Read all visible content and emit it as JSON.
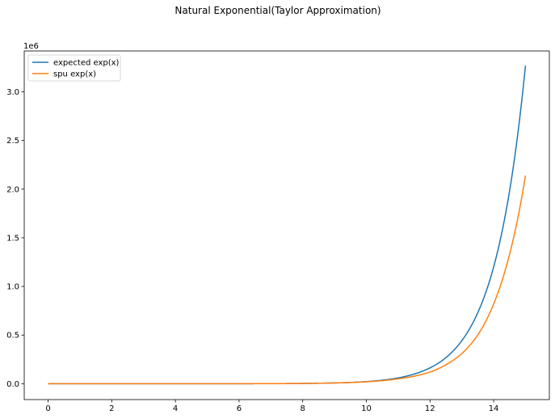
{
  "chart_data": {
    "type": "line",
    "title": "Natural Exponential(Taylor Approximation)",
    "xlabel": "",
    "ylabel": "",
    "y_offset_label": "1e6",
    "xlim": [
      -0.75,
      15.75
    ],
    "ylim": [
      -0.163,
      3.42
    ],
    "x_ticks": [
      0,
      2,
      4,
      6,
      8,
      10,
      12,
      14
    ],
    "x_tick_labels": [
      "0",
      "2",
      "4",
      "6",
      "8",
      "10",
      "12",
      "14"
    ],
    "y_ticks": [
      0,
      0.5,
      1.0,
      1.5,
      2.0,
      2.5,
      3.0
    ],
    "y_tick_labels": [
      "0.0",
      "0.5",
      "1.0",
      "1.5",
      "2.0",
      "2.5",
      "3.0"
    ],
    "grid": false,
    "legend_position": "top-left",
    "x": [
      0,
      1,
      2,
      3,
      4,
      5,
      6,
      7,
      8,
      9,
      10,
      11,
      12,
      12.5,
      13,
      13.5,
      14,
      14.5,
      15
    ],
    "series": [
      {
        "name": "expected exp(x)",
        "color": "#1f77b4",
        "values": [
          1e-06,
          2.7e-06,
          7.4e-06,
          2e-05,
          5.5e-05,
          0.000148,
          0.000403,
          0.0011,
          0.00298,
          0.0081,
          0.022,
          0.0599,
          0.163,
          0.268,
          0.442,
          0.729,
          1.2,
          1.98,
          3.27
        ]
      },
      {
        "name": "spu exp(x)",
        "color": "#ff7f0e",
        "values": [
          1e-06,
          2.7e-06,
          7.4e-06,
          2e-05,
          5.5e-05,
          0.000148,
          0.000403,
          0.0011,
          0.00298,
          0.0079,
          0.02,
          0.05,
          0.12,
          0.195,
          0.31,
          0.5,
          0.82,
          1.33,
          2.14
        ]
      }
    ]
  }
}
